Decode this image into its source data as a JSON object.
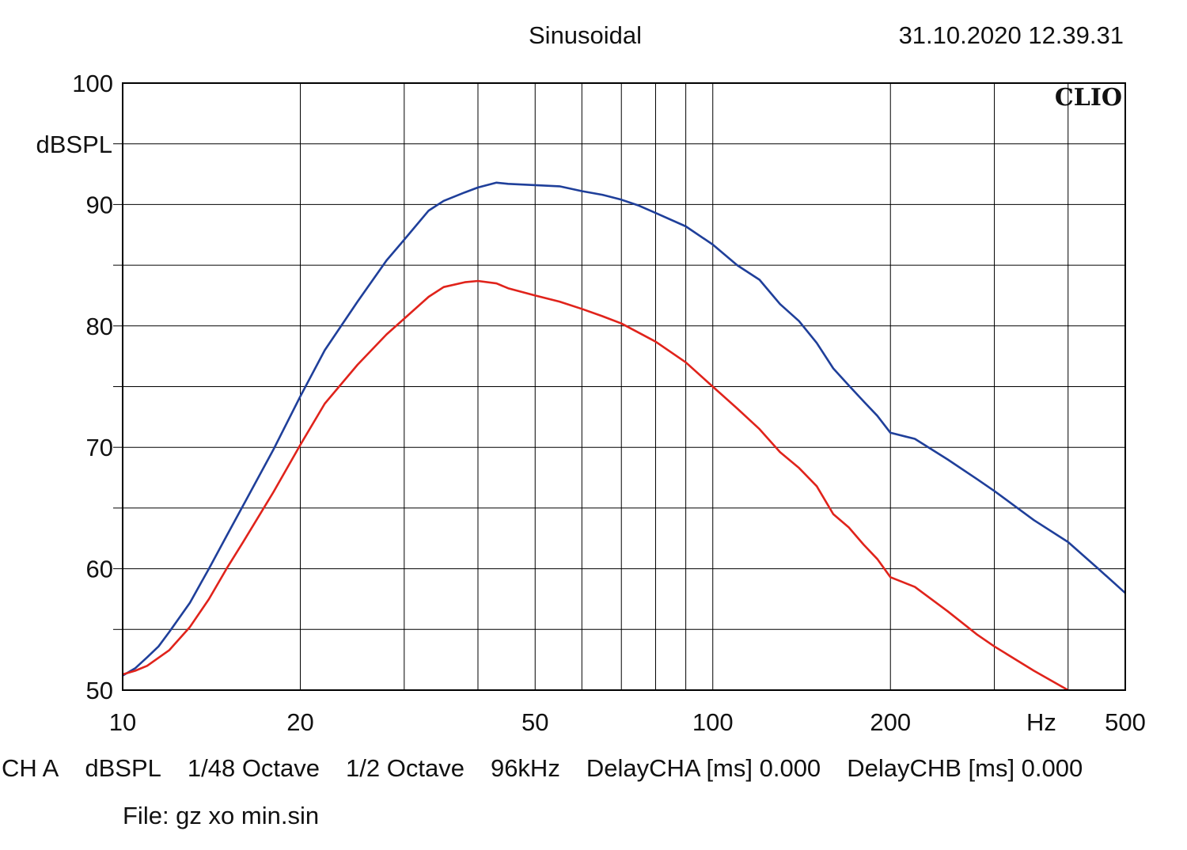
{
  "header": {
    "title": "Sinusoidal",
    "timestamp": "31.10.2020 12.39.31"
  },
  "brand": "CLIO",
  "chart_data": {
    "type": "line",
    "x_scale": "log",
    "xlim": [
      10,
      500
    ],
    "ylim": [
      50,
      100
    ],
    "ylabel": "dBSPL",
    "xunit": "Hz",
    "grid": true,
    "x_ticks": [
      10,
      20,
      50,
      100,
      200,
      500
    ],
    "y_ticks": [
      100,
      90,
      80,
      70,
      60,
      50
    ],
    "colors": {
      "blue": "#1f3f9a",
      "red": "#e0231b",
      "grid": "#000000"
    },
    "series": [
      {
        "color": "#1f3f9a",
        "points": [
          [
            10,
            51.2
          ],
          [
            10.5,
            51.8
          ],
          [
            11,
            52.7
          ],
          [
            11.5,
            53.6
          ],
          [
            12,
            54.8
          ],
          [
            13,
            57.2
          ],
          [
            14,
            60.0
          ],
          [
            15,
            62.7
          ],
          [
            16,
            65.2
          ],
          [
            18,
            69.8
          ],
          [
            20,
            74.2
          ],
          [
            22,
            78.0
          ],
          [
            25,
            82.0
          ],
          [
            28,
            85.4
          ],
          [
            30,
            87.1
          ],
          [
            33,
            89.5
          ],
          [
            35,
            90.3
          ],
          [
            38,
            91.0
          ],
          [
            40,
            91.4
          ],
          [
            43,
            91.8
          ],
          [
            45,
            91.7
          ],
          [
            50,
            91.6
          ],
          [
            55,
            91.5
          ],
          [
            60,
            91.1
          ],
          [
            65,
            90.8
          ],
          [
            70,
            90.4
          ],
          [
            75,
            89.9
          ],
          [
            80,
            89.3
          ],
          [
            90,
            88.2
          ],
          [
            100,
            86.7
          ],
          [
            110,
            85.0
          ],
          [
            120,
            83.8
          ],
          [
            130,
            81.8
          ],
          [
            140,
            80.4
          ],
          [
            150,
            78.6
          ],
          [
            160,
            76.5
          ],
          [
            170,
            75.1
          ],
          [
            180,
            73.8
          ],
          [
            190,
            72.6
          ],
          [
            200,
            71.2
          ],
          [
            220,
            70.7
          ],
          [
            250,
            69.0
          ],
          [
            280,
            67.4
          ],
          [
            300,
            66.4
          ],
          [
            350,
            64.0
          ],
          [
            400,
            62.2
          ],
          [
            450,
            60.0
          ],
          [
            500,
            58.0
          ]
        ]
      },
      {
        "color": "#e0231b",
        "points": [
          [
            10,
            51.3
          ],
          [
            10.5,
            51.6
          ],
          [
            11,
            52.0
          ],
          [
            12,
            53.3
          ],
          [
            13,
            55.2
          ],
          [
            14,
            57.5
          ],
          [
            15,
            60.0
          ],
          [
            16,
            62.2
          ],
          [
            18,
            66.3
          ],
          [
            20,
            70.2
          ],
          [
            22,
            73.6
          ],
          [
            25,
            76.8
          ],
          [
            28,
            79.3
          ],
          [
            30,
            80.6
          ],
          [
            33,
            82.4
          ],
          [
            35,
            83.2
          ],
          [
            38,
            83.6
          ],
          [
            40,
            83.7
          ],
          [
            43,
            83.5
          ],
          [
            45,
            83.1
          ],
          [
            50,
            82.5
          ],
          [
            55,
            82.0
          ],
          [
            60,
            81.4
          ],
          [
            65,
            80.8
          ],
          [
            70,
            80.2
          ],
          [
            80,
            78.7
          ],
          [
            90,
            77.0
          ],
          [
            100,
            75.0
          ],
          [
            110,
            73.2
          ],
          [
            120,
            71.5
          ],
          [
            130,
            69.6
          ],
          [
            140,
            68.3
          ],
          [
            150,
            66.8
          ],
          [
            160,
            64.5
          ],
          [
            170,
            63.4
          ],
          [
            180,
            62.0
          ],
          [
            190,
            60.8
          ],
          [
            200,
            59.3
          ],
          [
            220,
            58.5
          ],
          [
            250,
            56.5
          ],
          [
            280,
            54.6
          ],
          [
            300,
            53.6
          ],
          [
            350,
            51.6
          ],
          [
            400,
            50.0
          ]
        ]
      }
    ]
  },
  "footer": {
    "params": [
      "CH A",
      "dBSPL",
      "1/48 Octave",
      "1/2 Octave",
      "96kHz",
      "DelayCHA [ms] 0.000",
      "DelayCHB [ms] 0.000"
    ],
    "file": "File: gz xo min.sin"
  }
}
